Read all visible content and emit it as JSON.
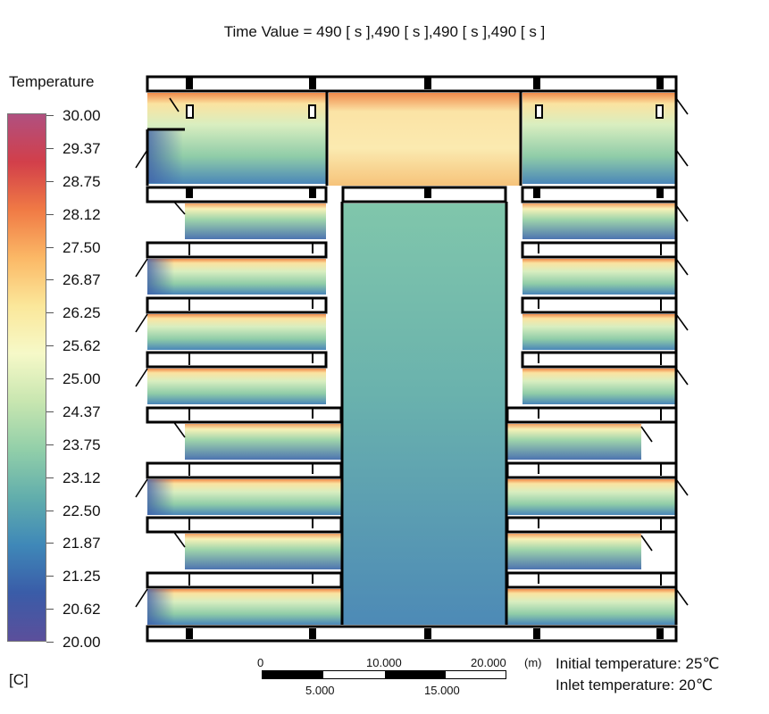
{
  "title": "Time Value = 490 [ s ],490 [ s ],490 [ s ],490 [ s ]",
  "legend": {
    "title": "Temperature",
    "unit": "[C]",
    "ticks": [
      "30.00",
      "29.37",
      "28.75",
      "28.12",
      "27.50",
      "26.87",
      "26.25",
      "25.62",
      "25.00",
      "24.37",
      "23.75",
      "23.12",
      "22.50",
      "21.87",
      "21.25",
      "20.62",
      "20.00"
    ],
    "colors": [
      "#b05080",
      "#d23f4a",
      "#f07a45",
      "#fbb866",
      "#fbe79a",
      "#f6f9c8",
      "#c8e6b0",
      "#92cfa9",
      "#62aeac",
      "#3f88b8",
      "#3a5ca8",
      "#5b4f9b"
    ]
  },
  "scale_bar": {
    "top_labels": [
      "0",
      "10.000",
      "20.000"
    ],
    "bottom_labels": [
      "5.000",
      "15.000"
    ],
    "unit": "(m)"
  },
  "notes": {
    "initial": "Initial temperature: 25℃",
    "inlet": "Inlet temperature: 20℃"
  }
}
